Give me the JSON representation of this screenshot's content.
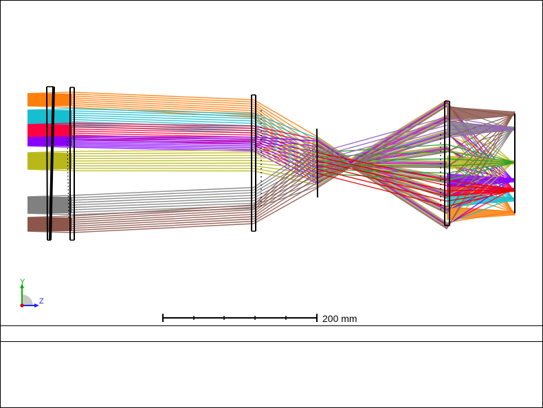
{
  "view": {
    "scale_bar_label": "200 mm",
    "axis_y_label": "Y",
    "axis_z_label": "Z"
  },
  "field_colors": [
    "#ff7f0e",
    "#17becf",
    "#ff0040",
    "#8a00ff",
    "#b8b81a",
    "#808080",
    "#8c564b",
    "#2ca02c",
    "#9467bd",
    "#e60000"
  ],
  "axis_colors": {
    "y": "#00b000",
    "z": "#2020ff",
    "origin": "#d00000"
  }
}
